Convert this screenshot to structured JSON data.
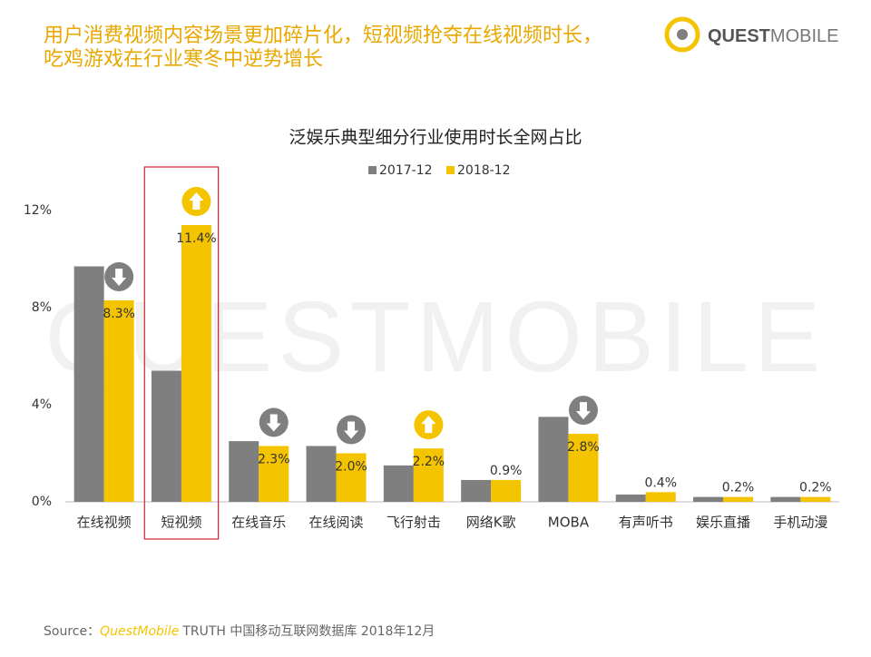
{
  "header": {
    "title_lines": [
      "用户消费视频内容场景更加碎片化，短视频抢夺在线视频时长，",
      "吃鸡游戏在行业寒冬中逆势增长"
    ],
    "logo": [
      "QUEST",
      "MOBILE"
    ]
  },
  "watermark": "QUESTMOBILE",
  "chart_data": {
    "type": "bar",
    "title": "泛娱乐典型细分行业使用时长全网占比",
    "categories": [
      "在线视频",
      "短视频",
      "在线音乐",
      "在线阅读",
      "飞行射击",
      "网络K歌",
      "MOBA",
      "有声听书",
      "娱乐直播",
      "手机动漫"
    ],
    "series": [
      {
        "name": "2017-12",
        "color": "#7f7f7f",
        "values": [
          9.7,
          5.4,
          2.5,
          2.3,
          1.5,
          0.9,
          3.5,
          0.3,
          0.2,
          0.2
        ]
      },
      {
        "name": "2018-12",
        "color": "#f5c400",
        "values": [
          8.3,
          11.4,
          2.3,
          2.0,
          2.2,
          0.9,
          2.8,
          0.4,
          0.2,
          0.2
        ],
        "value_labels": [
          "8.3%",
          "11.4%",
          "2.3%",
          "2.0%",
          "2.2%",
          "0.9%",
          "2.8%",
          "0.4%",
          "0.2%",
          "0.2%"
        ]
      }
    ],
    "trend": [
      "down",
      "up",
      "down",
      "down",
      "up",
      null,
      "down",
      null,
      null,
      null
    ],
    "highlight_category": 1,
    "ylim": [
      0,
      12
    ],
    "yticks": [
      {
        "value": 0,
        "label": "0%"
      },
      {
        "value": 4,
        "label": "4%"
      },
      {
        "value": 8,
        "label": "8%"
      },
      {
        "value": 12,
        "label": "12%"
      }
    ],
    "legend": "top"
  },
  "source": [
    "Source：",
    "QuestMobile",
    "TRUTH 中国移动互联网数据库 2018年12月"
  ]
}
